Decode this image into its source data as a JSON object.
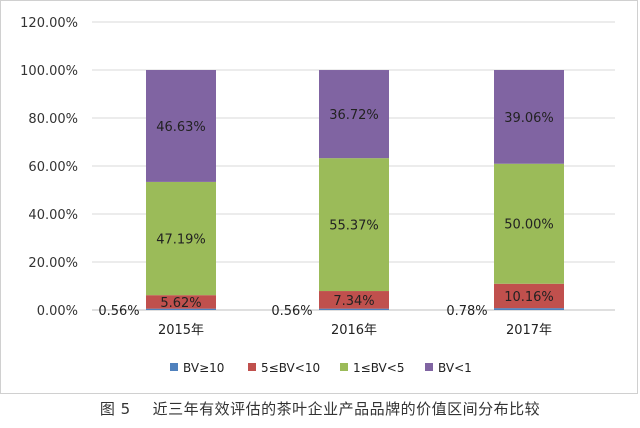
{
  "chart_data": {
    "type": "bar",
    "stacked": true,
    "categories": [
      "2015年",
      "2016年",
      "2017年"
    ],
    "series": [
      {
        "name": "BV≥10",
        "color": "#4f81bd",
        "values": [
          0.56,
          0.56,
          0.78
        ],
        "labels": [
          "0.56%",
          "0.56%",
          "0.78%"
        ]
      },
      {
        "name": "5≤BV<10",
        "color": "#c0504d",
        "values": [
          5.62,
          7.34,
          10.16
        ],
        "labels": [
          "5.62%",
          "7.34%",
          "10.16%"
        ]
      },
      {
        "name": "1≤BV<5",
        "color": "#9bbb59",
        "values": [
          47.19,
          55.37,
          50.0
        ],
        "labels": [
          "47.19%",
          "55.37%",
          "50.00%"
        ]
      },
      {
        "name": "BV<1",
        "color": "#8064a2",
        "values": [
          46.63,
          36.72,
          39.06
        ],
        "labels": [
          "46.63%",
          "36.72%",
          "39.06%"
        ]
      }
    ],
    "ylim": [
      0,
      120
    ],
    "yticks": [
      "0.00%",
      "20.00%",
      "40.00%",
      "60.00%",
      "80.00%",
      "100.00%",
      "120.00%"
    ],
    "grid": true,
    "legend": "bottom"
  },
  "caption": {
    "figure": "图 5",
    "text": "近三年有效评估的茶叶企业产品品牌的价值区间分布比较"
  }
}
